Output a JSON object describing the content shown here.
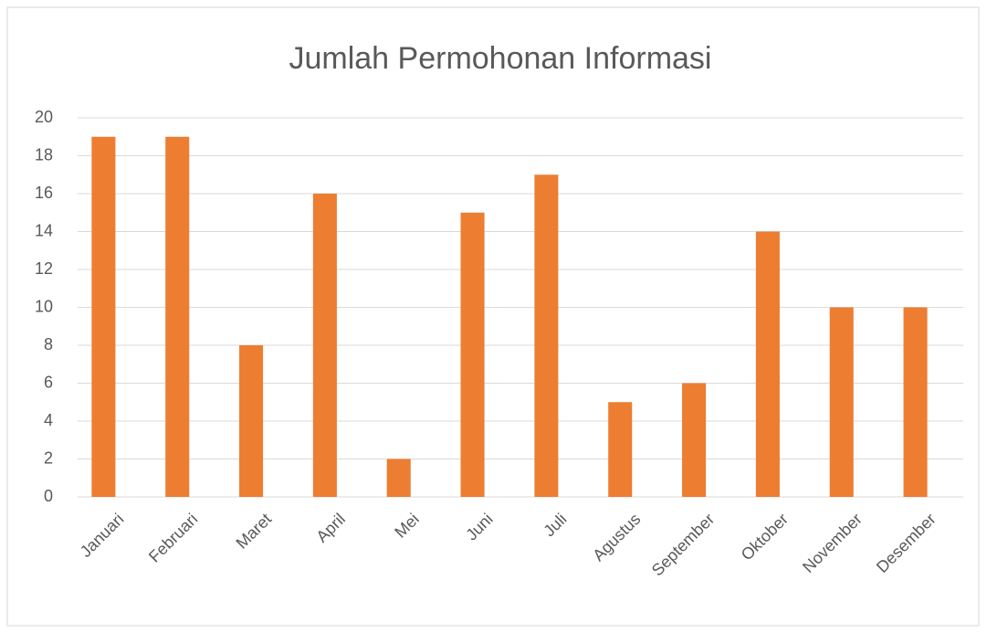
{
  "chart_data": {
    "type": "bar",
    "title": "Jumlah Permohonan Informasi",
    "categories": [
      "Januari",
      "Februari",
      "Maret",
      "April",
      "Mei",
      "Juni",
      "Juli",
      "Agustus",
      "September",
      "Oktober",
      "November",
      "Desember"
    ],
    "values": [
      19,
      19,
      8,
      16,
      2,
      15,
      17,
      5,
      6,
      14,
      10,
      10
    ],
    "color": "#ed7d31",
    "ylim": [
      0,
      20
    ],
    "yticks": [
      0,
      2,
      4,
      6,
      8,
      10,
      12,
      14,
      16,
      18,
      20
    ],
    "grid": true
  }
}
